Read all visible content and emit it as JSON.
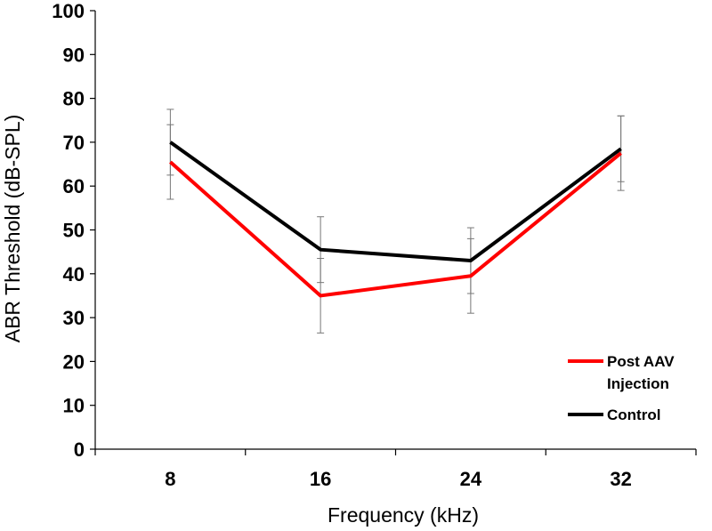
{
  "chart_data": {
    "type": "line",
    "title": "",
    "xlabel": "Frequency (kHz)",
    "ylabel": "ABR Threshold (dB-SPL)",
    "categories": [
      "8",
      "16",
      "24",
      "32"
    ],
    "ylim": [
      0,
      100
    ],
    "yticks": [
      "0",
      "10",
      "20",
      "30",
      "40",
      "50",
      "60",
      "70",
      "80",
      "90",
      "100"
    ],
    "grid": false,
    "legend_position": "right",
    "series": [
      {
        "name": "Post AAV Injection",
        "legend_lines": [
          "Post AAV",
          "Injection"
        ],
        "color": "#ff0000",
        "values": [
          65.5,
          35,
          39.5,
          67.5
        ],
        "error": [
          8.5,
          8.5,
          8.5,
          8.5
        ]
      },
      {
        "name": "Control",
        "legend_lines": [
          "Control"
        ],
        "color": "#000000",
        "values": [
          70,
          45.5,
          43,
          68.5
        ],
        "error": [
          7.5,
          7.5,
          7.5,
          7.5
        ]
      }
    ]
  }
}
